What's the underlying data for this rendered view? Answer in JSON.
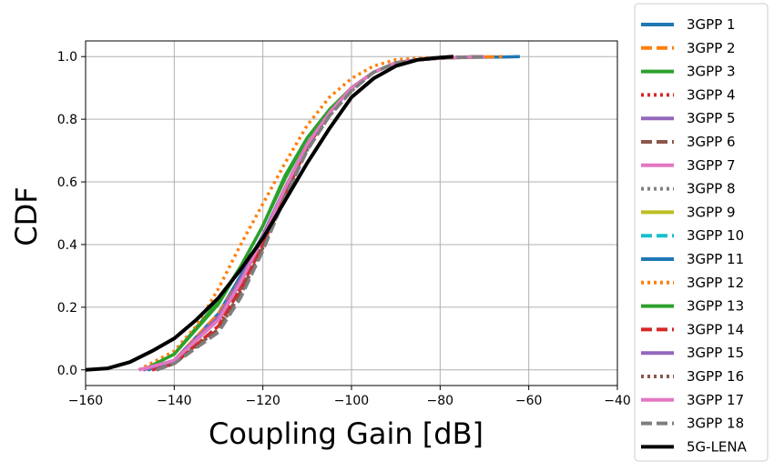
{
  "chart_data": {
    "type": "line",
    "title": "",
    "xlabel": "Coupling Gain [dB]",
    "ylabel": "CDF",
    "xlim": [
      -160,
      -40
    ],
    "ylim": [
      -0.05,
      1.05
    ],
    "xticks": [
      -160,
      -140,
      -120,
      -100,
      -80,
      -60,
      -40
    ],
    "yticks": [
      0.0,
      0.2,
      0.4,
      0.6,
      0.8,
      1.0
    ],
    "xtick_labels": [
      "−160",
      "−140",
      "−120",
      "−100",
      "−80",
      "−60",
      "−40"
    ],
    "ytick_labels": [
      "0.0",
      "0.2",
      "0.4",
      "0.6",
      "0.8",
      "1.0"
    ],
    "grid": true,
    "legend_position": "outside-right",
    "series": [
      {
        "name": "3GPP 1",
        "color": "#1f77b4",
        "style": "solid",
        "x": [
          -147,
          -140,
          -130,
          -125,
          -120,
          -115,
          -110,
          -105,
          -100,
          -95,
          -90,
          -85,
          -80,
          -75,
          -70,
          -65,
          -62
        ],
        "y": [
          0.0,
          0.03,
          0.18,
          0.3,
          0.43,
          0.58,
          0.72,
          0.82,
          0.9,
          0.95,
          0.98,
          0.99,
          0.995,
          0.997,
          0.998,
          0.999,
          1.0
        ]
      },
      {
        "name": "3GPP 2",
        "color": "#ff7f0e",
        "style": "dashed",
        "x": [
          -146,
          -140,
          -130,
          -125,
          -120,
          -115,
          -110,
          -105,
          -100,
          -95,
          -90,
          -85,
          -80,
          -75,
          -70,
          -66
        ],
        "y": [
          0.0,
          0.03,
          0.18,
          0.29,
          0.42,
          0.57,
          0.72,
          0.82,
          0.9,
          0.95,
          0.98,
          0.99,
          0.995,
          0.997,
          0.999,
          1.0
        ]
      },
      {
        "name": "3GPP 3",
        "color": "#2ca02c",
        "style": "solid",
        "x": [
          -147,
          -140,
          -130,
          -125,
          -120,
          -115,
          -110,
          -105,
          -100,
          -95,
          -90,
          -85,
          -80,
          -75,
          -70
        ],
        "y": [
          0.0,
          0.05,
          0.22,
          0.33,
          0.46,
          0.62,
          0.74,
          0.83,
          0.9,
          0.95,
          0.98,
          0.99,
          0.995,
          0.998,
          1.0
        ]
      },
      {
        "name": "3GPP 4",
        "color": "#d62728",
        "style": "dotted",
        "x": [
          -145,
          -140,
          -130,
          -125,
          -120,
          -115,
          -110,
          -105,
          -100,
          -95,
          -90,
          -85,
          -80,
          -75,
          -70
        ],
        "y": [
          0.0,
          0.02,
          0.14,
          0.26,
          0.4,
          0.56,
          0.71,
          0.82,
          0.9,
          0.95,
          0.98,
          0.99,
          0.995,
          0.998,
          1.0
        ]
      },
      {
        "name": "3GPP 5",
        "color": "#9467bd",
        "style": "solid",
        "x": [
          -147,
          -140,
          -130,
          -125,
          -120,
          -115,
          -110,
          -105,
          -100,
          -95,
          -90,
          -85,
          -80,
          -75,
          -70
        ],
        "y": [
          0.0,
          0.03,
          0.17,
          0.29,
          0.43,
          0.58,
          0.72,
          0.82,
          0.9,
          0.95,
          0.98,
          0.99,
          0.995,
          0.998,
          1.0
        ]
      },
      {
        "name": "3GPP 6",
        "color": "#8c564b",
        "style": "dashed",
        "x": [
          -144,
          -140,
          -130,
          -125,
          -120,
          -115,
          -110,
          -105,
          -100,
          -95,
          -90,
          -85,
          -80,
          -75,
          -70
        ],
        "y": [
          0.0,
          0.02,
          0.13,
          0.25,
          0.39,
          0.56,
          0.71,
          0.82,
          0.9,
          0.95,
          0.98,
          0.99,
          0.995,
          0.998,
          1.0
        ]
      },
      {
        "name": "3GPP 7",
        "color": "#e377c2",
        "style": "solid",
        "x": [
          -148,
          -140,
          -130,
          -125,
          -120,
          -115,
          -110,
          -105,
          -100,
          -95,
          -90,
          -85,
          -80,
          -75,
          -70
        ],
        "y": [
          0.0,
          0.03,
          0.16,
          0.28,
          0.42,
          0.58,
          0.72,
          0.82,
          0.9,
          0.95,
          0.98,
          0.99,
          0.995,
          0.998,
          1.0
        ]
      },
      {
        "name": "3GPP 8",
        "color": "#7f7f7f",
        "style": "dotted",
        "x": [
          -144,
          -140,
          -130,
          -125,
          -120,
          -115,
          -110,
          -105,
          -100,
          -95,
          -90,
          -85,
          -80,
          -75,
          -70
        ],
        "y": [
          0.0,
          0.02,
          0.13,
          0.24,
          0.39,
          0.55,
          0.7,
          0.81,
          0.89,
          0.95,
          0.98,
          0.99,
          0.995,
          0.998,
          1.0
        ]
      },
      {
        "name": "3GPP 9",
        "color": "#bcbd22",
        "style": "solid",
        "x": [
          -146,
          -140,
          -130,
          -125,
          -120,
          -115,
          -110,
          -105,
          -100,
          -95,
          -90,
          -85,
          -80,
          -75,
          -70
        ],
        "y": [
          0.0,
          0.03,
          0.16,
          0.28,
          0.42,
          0.58,
          0.72,
          0.82,
          0.9,
          0.95,
          0.98,
          0.99,
          0.995,
          0.998,
          1.0
        ]
      },
      {
        "name": "3GPP 10",
        "color": "#17becf",
        "style": "dashed",
        "x": [
          -146,
          -140,
          -130,
          -125,
          -120,
          -115,
          -110,
          -105,
          -100,
          -95,
          -90,
          -85,
          -80,
          -75,
          -70
        ],
        "y": [
          0.0,
          0.03,
          0.16,
          0.28,
          0.42,
          0.58,
          0.72,
          0.82,
          0.9,
          0.95,
          0.98,
          0.99,
          0.995,
          0.998,
          1.0
        ]
      },
      {
        "name": "3GPP 11",
        "color": "#1f77b4",
        "style": "solid",
        "x": [
          -146,
          -140,
          -130,
          -125,
          -120,
          -115,
          -110,
          -105,
          -100,
          -95,
          -90,
          -85,
          -80,
          -75,
          -70
        ],
        "y": [
          0.0,
          0.03,
          0.16,
          0.28,
          0.42,
          0.58,
          0.72,
          0.82,
          0.9,
          0.95,
          0.98,
          0.99,
          0.995,
          0.998,
          1.0
        ]
      },
      {
        "name": "3GPP 12",
        "color": "#ff7f0e",
        "style": "dotted",
        "x": [
          -148,
          -140,
          -135,
          -130,
          -125,
          -120,
          -115,
          -110,
          -105,
          -100,
          -95,
          -90,
          -85,
          -80,
          -75,
          -70
        ],
        "y": [
          0.0,
          0.06,
          0.14,
          0.26,
          0.4,
          0.53,
          0.66,
          0.78,
          0.87,
          0.93,
          0.97,
          0.99,
          0.995,
          0.997,
          0.999,
          1.0
        ]
      },
      {
        "name": "3GPP 13",
        "color": "#2ca02c",
        "style": "solid",
        "x": [
          -147,
          -140,
          -130,
          -125,
          -120,
          -115,
          -110,
          -105,
          -100,
          -95,
          -90,
          -85,
          -80,
          -75,
          -70
        ],
        "y": [
          0.0,
          0.05,
          0.21,
          0.33,
          0.46,
          0.61,
          0.74,
          0.83,
          0.9,
          0.95,
          0.98,
          0.99,
          0.995,
          0.998,
          1.0
        ]
      },
      {
        "name": "3GPP 14",
        "color": "#d62728",
        "style": "dashed",
        "x": [
          -145,
          -140,
          -130,
          -125,
          -120,
          -115,
          -110,
          -105,
          -100,
          -95,
          -90,
          -85,
          -80,
          -75,
          -70
        ],
        "y": [
          0.0,
          0.02,
          0.14,
          0.26,
          0.4,
          0.56,
          0.71,
          0.82,
          0.9,
          0.95,
          0.98,
          0.99,
          0.995,
          0.998,
          1.0
        ]
      },
      {
        "name": "3GPP 15",
        "color": "#9467bd",
        "style": "solid",
        "x": [
          -147,
          -140,
          -130,
          -125,
          -120,
          -115,
          -110,
          -105,
          -100,
          -95,
          -90,
          -85,
          -80,
          -75,
          -70
        ],
        "y": [
          0.0,
          0.03,
          0.17,
          0.29,
          0.43,
          0.58,
          0.72,
          0.82,
          0.9,
          0.95,
          0.98,
          0.99,
          0.995,
          0.998,
          1.0
        ]
      },
      {
        "name": "3GPP 16",
        "color": "#8c564b",
        "style": "dotted",
        "x": [
          -144,
          -140,
          -130,
          -125,
          -120,
          -115,
          -110,
          -105,
          -100,
          -95,
          -90,
          -85,
          -80,
          -75,
          -70
        ],
        "y": [
          0.0,
          0.02,
          0.13,
          0.25,
          0.39,
          0.56,
          0.71,
          0.82,
          0.9,
          0.95,
          0.98,
          0.99,
          0.995,
          0.998,
          1.0
        ]
      },
      {
        "name": "3GPP 17",
        "color": "#e377c2",
        "style": "solid",
        "x": [
          -148,
          -140,
          -130,
          -125,
          -120,
          -115,
          -110,
          -105,
          -100,
          -95,
          -90,
          -85,
          -80,
          -75,
          -70
        ],
        "y": [
          0.0,
          0.03,
          0.16,
          0.28,
          0.42,
          0.58,
          0.72,
          0.82,
          0.9,
          0.95,
          0.98,
          0.99,
          0.995,
          0.998,
          1.0
        ]
      },
      {
        "name": "3GPP 18",
        "color": "#7f7f7f",
        "style": "dashed",
        "x": [
          -144,
          -140,
          -130,
          -125,
          -120,
          -115,
          -110,
          -105,
          -100,
          -95,
          -90,
          -85,
          -80,
          -75,
          -70
        ],
        "y": [
          0.0,
          0.02,
          0.12,
          0.23,
          0.38,
          0.55,
          0.7,
          0.81,
          0.89,
          0.95,
          0.98,
          0.99,
          0.995,
          0.998,
          1.0
        ]
      },
      {
        "name": "5G-LENA",
        "color": "#000000",
        "style": "solid",
        "x": [
          -160,
          -155,
          -150,
          -145,
          -140,
          -135,
          -130,
          -125,
          -120,
          -115,
          -110,
          -105,
          -100,
          -95,
          -90,
          -85,
          -80,
          -77
        ],
        "y": [
          0.0,
          0.005,
          0.025,
          0.06,
          0.1,
          0.16,
          0.23,
          0.32,
          0.42,
          0.54,
          0.66,
          0.77,
          0.87,
          0.93,
          0.97,
          0.99,
          0.997,
          1.0
        ]
      }
    ]
  }
}
